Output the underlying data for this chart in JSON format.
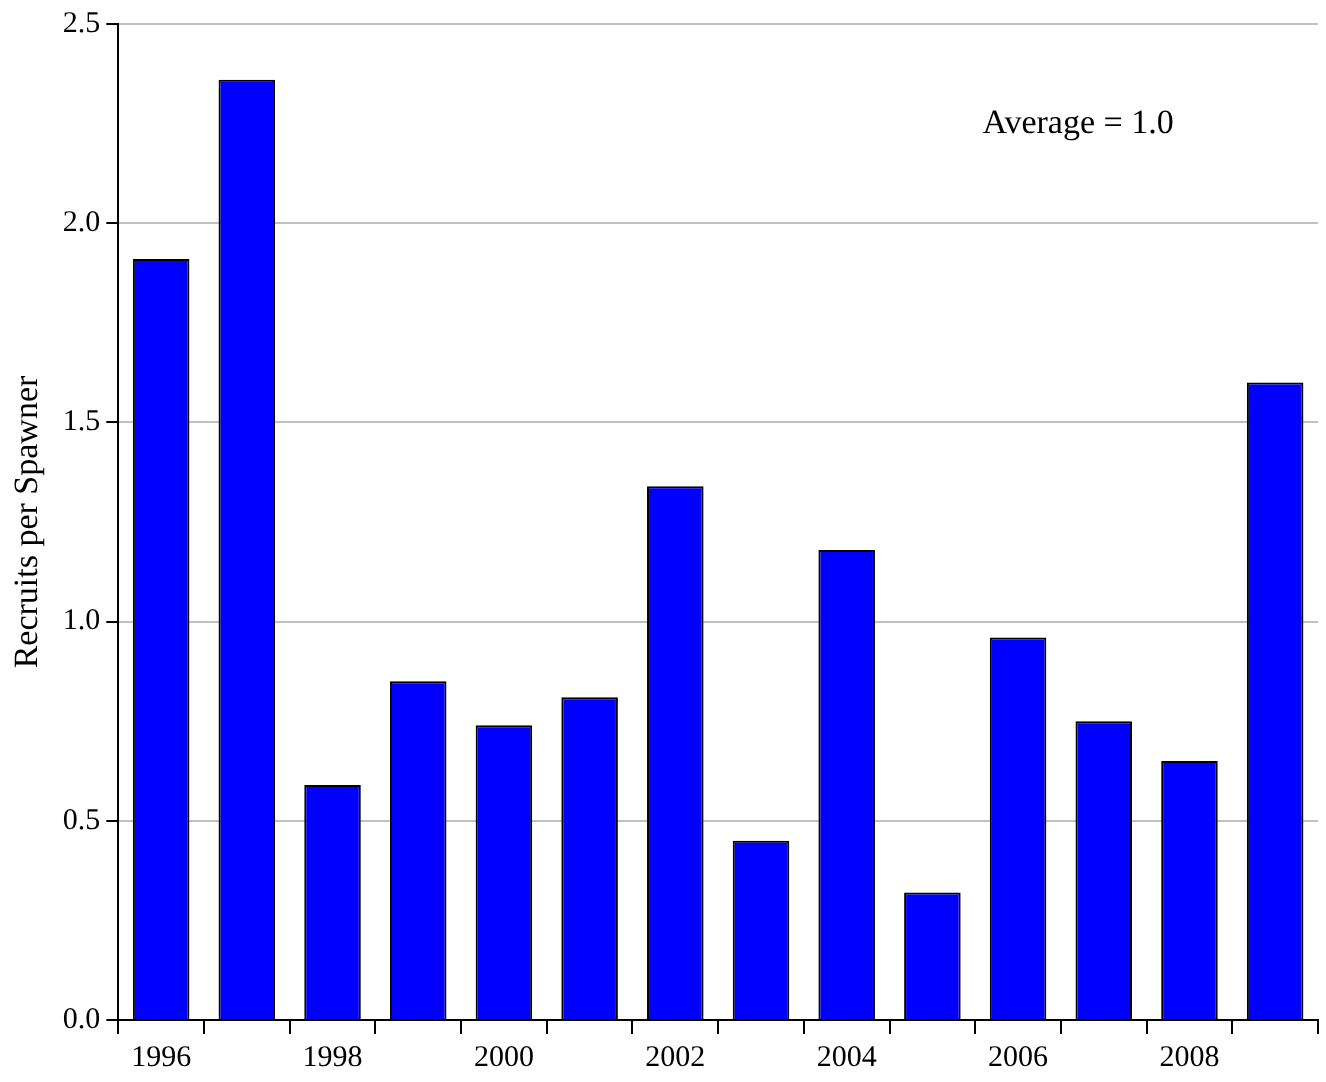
{
  "chart_data": {
    "type": "bar",
    "ylabel": "Recruits per Spawner",
    "annotations": [
      "Average = 1.0"
    ],
    "categories": [
      "1996",
      null,
      "1998",
      null,
      "2000",
      null,
      "2002",
      null,
      "2004",
      null,
      "2006",
      null,
      "2008",
      null
    ],
    "values": [
      1.91,
      2.36,
      0.59,
      0.85,
      0.74,
      0.81,
      1.34,
      0.45,
      1.18,
      0.32,
      0.96,
      0.75,
      0.65,
      1.6
    ],
    "color": "#0000ff",
    "ylim": [
      0,
      2.5
    ],
    "yticks": [
      {
        "value": 0,
        "label": "0.0"
      },
      0.5,
      {
        "value": 1,
        "label": "1.0"
      },
      1.5,
      {
        "value": 2,
        "label": "2.0"
      },
      2.5
    ],
    "grid": "y",
    "legend": false
  }
}
